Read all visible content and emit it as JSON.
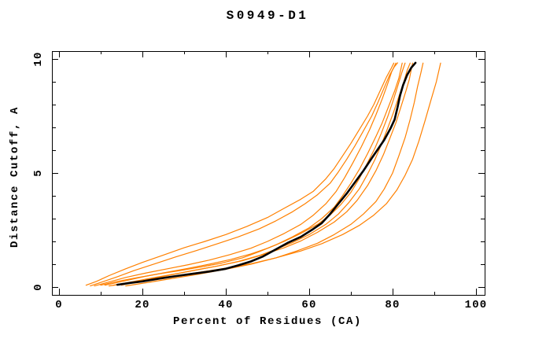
{
  "chart_data": {
    "type": "line",
    "title": "S0949-D1",
    "xlabel": "Percent of Residues (CA)",
    "ylabel": "Distance Cutoff, A",
    "xlim": [
      0,
      100
    ],
    "ylim": [
      0,
      10
    ],
    "x_major_ticks": [
      0,
      20,
      40,
      60,
      80,
      100
    ],
    "x_minor_ticks": [
      10,
      30,
      50,
      70,
      90
    ],
    "y_major_ticks": [
      0,
      5,
      10
    ],
    "y_minor_ticks": [
      1,
      2,
      3,
      4,
      6,
      7,
      8,
      9
    ],
    "grid": false,
    "legend_position": "none",
    "colors": {
      "model": "#ff8000",
      "consensus": "#000000",
      "frame": "#000000",
      "background": "#ffffff"
    },
    "series": [
      {
        "name": "orange-curve-1",
        "role": "model",
        "color": "#ff8000",
        "width": 1.2,
        "points": [
          [
            6.5,
            0.08
          ],
          [
            9,
            0.25
          ],
          [
            12,
            0.5
          ],
          [
            16,
            0.8
          ],
          [
            20,
            1.08
          ],
          [
            25,
            1.4
          ],
          [
            30,
            1.72
          ],
          [
            35,
            2.0
          ],
          [
            40,
            2.3
          ],
          [
            45,
            2.65
          ],
          [
            50,
            3.05
          ],
          [
            54,
            3.45
          ],
          [
            58,
            3.85
          ],
          [
            61,
            4.2
          ],
          [
            64,
            4.75
          ],
          [
            66,
            5.2
          ],
          [
            68,
            5.75
          ],
          [
            70,
            6.3
          ],
          [
            72,
            6.9
          ],
          [
            74,
            7.5
          ],
          [
            75.5,
            8.0
          ],
          [
            77,
            8.6
          ],
          [
            78.5,
            9.2
          ],
          [
            79.7,
            9.6
          ],
          [
            80.3,
            9.82
          ]
        ]
      },
      {
        "name": "orange-curve-2",
        "role": "model",
        "color": "#ff8000",
        "width": 1.2,
        "points": [
          [
            7.5,
            0.05
          ],
          [
            10,
            0.2
          ],
          [
            14,
            0.45
          ],
          [
            18,
            0.72
          ],
          [
            23,
            1.02
          ],
          [
            28,
            1.32
          ],
          [
            33,
            1.6
          ],
          [
            38,
            1.9
          ],
          [
            43,
            2.2
          ],
          [
            48,
            2.55
          ],
          [
            52,
            2.9
          ],
          [
            56,
            3.3
          ],
          [
            59,
            3.65
          ],
          [
            62,
            4.05
          ],
          [
            65,
            4.55
          ],
          [
            67,
            5.05
          ],
          [
            69,
            5.6
          ],
          [
            71,
            6.2
          ],
          [
            73,
            6.85
          ],
          [
            75,
            7.5
          ],
          [
            76.5,
            8.1
          ],
          [
            78,
            8.75
          ],
          [
            79.3,
            9.3
          ],
          [
            80.4,
            9.65
          ],
          [
            81.2,
            9.83
          ]
        ]
      },
      {
        "name": "orange-curve-3",
        "role": "model",
        "color": "#ff8000",
        "width": 1.2,
        "points": [
          [
            10,
            0.08
          ],
          [
            14,
            0.25
          ],
          [
            19,
            0.42
          ],
          [
            24,
            0.58
          ],
          [
            29,
            0.72
          ],
          [
            34,
            0.88
          ],
          [
            39,
            1.05
          ],
          [
            44,
            1.28
          ],
          [
            48,
            1.55
          ],
          [
            52,
            1.85
          ],
          [
            56,
            2.2
          ],
          [
            60,
            2.6
          ],
          [
            63,
            3.0
          ],
          [
            66,
            3.5
          ],
          [
            68,
            4.0
          ],
          [
            70,
            4.55
          ],
          [
            72,
            5.15
          ],
          [
            74,
            5.85
          ],
          [
            76,
            6.6
          ],
          [
            77.5,
            7.2
          ],
          [
            79,
            7.9
          ],
          [
            80.5,
            8.6
          ],
          [
            81.5,
            9.15
          ],
          [
            82.3,
            9.82
          ]
        ]
      },
      {
        "name": "orange-curve-4",
        "role": "model",
        "color": "#ff8000",
        "width": 1.2,
        "points": [
          [
            13,
            0.08
          ],
          [
            18,
            0.25
          ],
          [
            23,
            0.42
          ],
          [
            28,
            0.58
          ],
          [
            33,
            0.75
          ],
          [
            38,
            0.92
          ],
          [
            43,
            1.12
          ],
          [
            48,
            1.38
          ],
          [
            52,
            1.65
          ],
          [
            56,
            1.95
          ],
          [
            60,
            2.3
          ],
          [
            64,
            2.75
          ],
          [
            67,
            3.2
          ],
          [
            69.5,
            3.7
          ],
          [
            72,
            4.3
          ],
          [
            74,
            4.95
          ],
          [
            75.8,
            5.6
          ],
          [
            77.3,
            6.25
          ],
          [
            78.8,
            6.95
          ],
          [
            80.2,
            7.65
          ],
          [
            81.5,
            8.35
          ],
          [
            82.6,
            8.95
          ],
          [
            83.5,
            9.5
          ],
          [
            84.2,
            9.82
          ]
        ]
      },
      {
        "name": "orange-curve-5",
        "role": "model",
        "color": "#ff8000",
        "width": 1.2,
        "points": [
          [
            15,
            0.08
          ],
          [
            20,
            0.28
          ],
          [
            26,
            0.5
          ],
          [
            32,
            0.72
          ],
          [
            38,
            0.92
          ],
          [
            44,
            1.15
          ],
          [
            49,
            1.42
          ],
          [
            54,
            1.72
          ],
          [
            58,
            2.02
          ],
          [
            62,
            2.4
          ],
          [
            66,
            2.85
          ],
          [
            69,
            3.3
          ],
          [
            71.5,
            3.8
          ],
          [
            74,
            4.45
          ],
          [
            76,
            5.1
          ],
          [
            77.8,
            5.8
          ],
          [
            79.3,
            6.5
          ],
          [
            80.8,
            7.2
          ],
          [
            82,
            7.9
          ],
          [
            83.2,
            8.6
          ],
          [
            84,
            9.1
          ],
          [
            84.8,
            9.82
          ]
        ]
      },
      {
        "name": "orange-curve-6",
        "role": "model",
        "color": "#ff8000",
        "width": 1.2,
        "points": [
          [
            16,
            0.05
          ],
          [
            22,
            0.22
          ],
          [
            28,
            0.4
          ],
          [
            34,
            0.58
          ],
          [
            40,
            0.78
          ],
          [
            46,
            1.0
          ],
          [
            52,
            1.28
          ],
          [
            57,
            1.58
          ],
          [
            62,
            1.92
          ],
          [
            66,
            2.3
          ],
          [
            70,
            2.75
          ],
          [
            73,
            3.2
          ],
          [
            76,
            3.75
          ],
          [
            78,
            4.3
          ],
          [
            80,
            5.0
          ],
          [
            81.5,
            5.75
          ],
          [
            83,
            6.55
          ],
          [
            84.2,
            7.35
          ],
          [
            85.2,
            8.1
          ],
          [
            86,
            8.8
          ],
          [
            86.8,
            9.4
          ],
          [
            87.3,
            9.82
          ]
        ]
      },
      {
        "name": "orange-curve-7",
        "role": "model",
        "color": "#ff8000",
        "width": 1.2,
        "points": [
          [
            12,
            0.05
          ],
          [
            18,
            0.2
          ],
          [
            25,
            0.4
          ],
          [
            32,
            0.6
          ],
          [
            39,
            0.8
          ],
          [
            46,
            1.02
          ],
          [
            52,
            1.28
          ],
          [
            58,
            1.58
          ],
          [
            63,
            1.9
          ],
          [
            68,
            2.3
          ],
          [
            72,
            2.7
          ],
          [
            75.5,
            3.15
          ],
          [
            78.5,
            3.65
          ],
          [
            81,
            4.25
          ],
          [
            83,
            4.9
          ],
          [
            84.8,
            5.6
          ],
          [
            86.3,
            6.4
          ],
          [
            87.8,
            7.3
          ],
          [
            89.2,
            8.2
          ],
          [
            90.5,
            9.0
          ],
          [
            91.5,
            9.82
          ]
        ]
      },
      {
        "name": "orange-curve-8",
        "role": "model",
        "color": "#ff8000",
        "width": 1.2,
        "points": [
          [
            11,
            0.08
          ],
          [
            16,
            0.28
          ],
          [
            21,
            0.48
          ],
          [
            26,
            0.65
          ],
          [
            31,
            0.82
          ],
          [
            36,
            1.0
          ],
          [
            41,
            1.2
          ],
          [
            46,
            1.45
          ],
          [
            50,
            1.7
          ],
          [
            54,
            2.0
          ],
          [
            58,
            2.35
          ],
          [
            62,
            2.75
          ],
          [
            65,
            3.15
          ],
          [
            67.5,
            3.6
          ],
          [
            70,
            4.15
          ],
          [
            72,
            4.75
          ],
          [
            74,
            5.45
          ],
          [
            75.8,
            6.1
          ],
          [
            77.3,
            6.75
          ],
          [
            78.8,
            7.45
          ],
          [
            80,
            8.1
          ],
          [
            81.2,
            8.8
          ],
          [
            82.2,
            9.4
          ],
          [
            83,
            9.82
          ]
        ]
      },
      {
        "name": "orange-curve-9",
        "role": "model",
        "color": "#ff8000",
        "width": 1.2,
        "points": [
          [
            8.5,
            0.05
          ],
          [
            12,
            0.22
          ],
          [
            16,
            0.42
          ],
          [
            21,
            0.62
          ],
          [
            26,
            0.8
          ],
          [
            31,
            0.98
          ],
          [
            36,
            1.18
          ],
          [
            41,
            1.42
          ],
          [
            46,
            1.7
          ],
          [
            50,
            2.0
          ],
          [
            54,
            2.35
          ],
          [
            58,
            2.75
          ],
          [
            61,
            3.15
          ],
          [
            64,
            3.65
          ],
          [
            66.5,
            4.2
          ],
          [
            68.5,
            4.8
          ],
          [
            70.5,
            5.45
          ],
          [
            72.5,
            6.15
          ],
          [
            74.5,
            6.9
          ],
          [
            76,
            7.55
          ],
          [
            77.5,
            8.25
          ],
          [
            78.8,
            8.9
          ],
          [
            79.8,
            9.45
          ],
          [
            80.8,
            9.82
          ]
        ]
      },
      {
        "name": "black-consensus-curve",
        "role": "consensus",
        "color": "#000000",
        "width": 2.6,
        "points": [
          [
            14,
            0.1
          ],
          [
            17,
            0.18
          ],
          [
            20,
            0.25
          ],
          [
            24,
            0.37
          ],
          [
            28,
            0.48
          ],
          [
            32,
            0.58
          ],
          [
            36,
            0.68
          ],
          [
            40,
            0.8
          ],
          [
            43,
            0.95
          ],
          [
            46,
            1.12
          ],
          [
            49,
            1.35
          ],
          [
            52,
            1.65
          ],
          [
            55,
            1.95
          ],
          [
            58,
            2.2
          ],
          [
            61,
            2.55
          ],
          [
            63,
            2.8
          ],
          [
            65,
            3.2
          ],
          [
            67,
            3.65
          ],
          [
            69,
            4.1
          ],
          [
            71,
            4.6
          ],
          [
            73,
            5.1
          ],
          [
            75,
            5.65
          ],
          [
            76.5,
            6.05
          ],
          [
            78,
            6.45
          ],
          [
            79.5,
            6.95
          ],
          [
            80.5,
            7.35
          ],
          [
            81.2,
            7.9
          ],
          [
            81.8,
            8.4
          ],
          [
            82.5,
            8.85
          ],
          [
            83.5,
            9.3
          ],
          [
            84.5,
            9.62
          ],
          [
            85.5,
            9.83
          ]
        ]
      }
    ]
  }
}
